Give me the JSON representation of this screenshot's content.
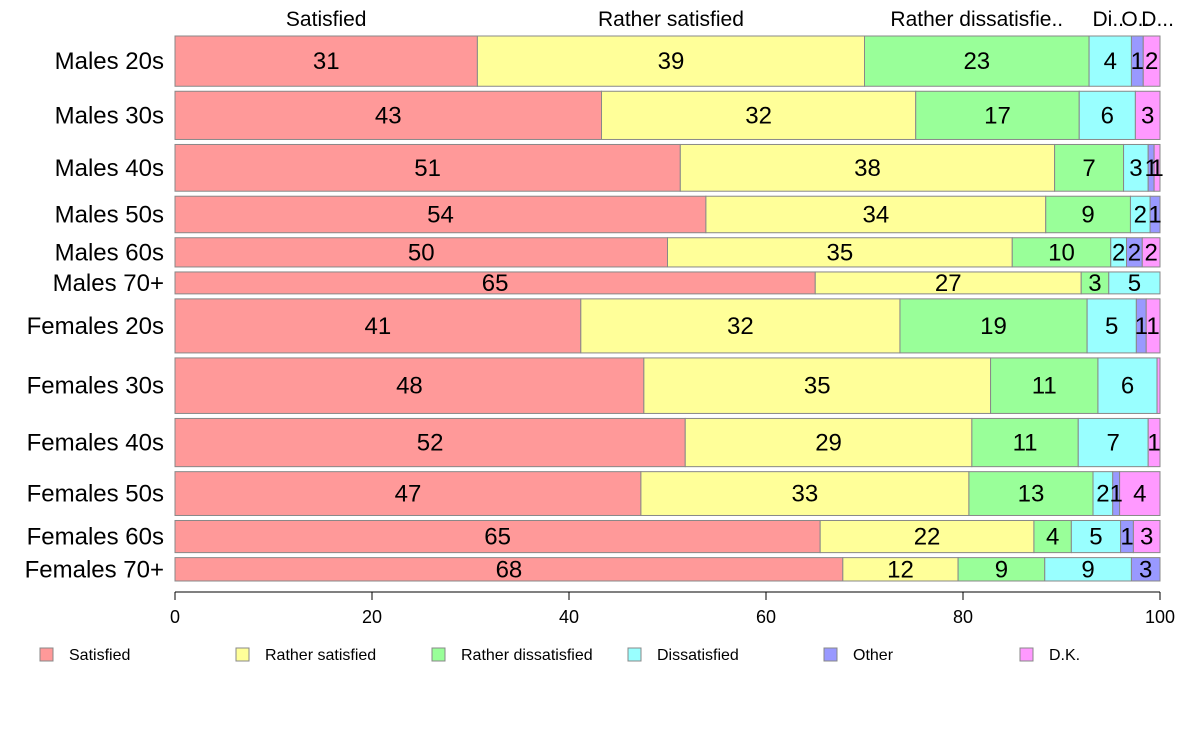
{
  "chart_data": {
    "type": "bar",
    "orientation": "horizontal",
    "stacked": true,
    "title": "",
    "xlabel": "",
    "ylabel": "",
    "xlim": [
      0,
      100
    ],
    "xticks": [
      0,
      20,
      40,
      60,
      80,
      100
    ],
    "grid": false,
    "legend_position": "bottom",
    "categories": [
      "Males 20s",
      "Males 30s",
      "Males 40s",
      "Males 50s",
      "Males 60s",
      "Males 70+",
      "Females 20s",
      "Females 30s",
      "Females 40s",
      "Females 50s",
      "Females 60s",
      "Females 70+"
    ],
    "row_weights": [
      1.72,
      1.65,
      1.6,
      1.25,
      1.0,
      0.75,
      1.85,
      1.9,
      1.65,
      1.5,
      1.1,
      0.8
    ],
    "top_labels": [
      "Satisfied",
      "Rather satisfied",
      "Rather dissatisfie..",
      "Di..",
      "O..",
      "D..."
    ],
    "series": [
      {
        "name": "Satisfied",
        "color": "#FF9999",
        "values": [
          30.7,
          43.3,
          51.3,
          53.9,
          50.0,
          65.0,
          41.2,
          47.6,
          51.8,
          47.3,
          65.5,
          67.8
        ],
        "labels": [
          "31",
          "43",
          "51",
          "54",
          "50",
          "65",
          "41",
          "48",
          "52",
          "47",
          "65",
          "68"
        ]
      },
      {
        "name": "Rather satisfied",
        "color": "#FFFF99",
        "values": [
          39.3,
          31.9,
          38.0,
          34.5,
          35.0,
          27.0,
          32.4,
          35.2,
          29.1,
          33.3,
          21.7,
          11.7
        ],
        "labels": [
          "39",
          "32",
          "38",
          "34",
          "35",
          "27",
          "32",
          "35",
          "29",
          "33",
          "22",
          "12"
        ]
      },
      {
        "name": "Rather dissatisfied",
        "color": "#99FF99",
        "values": [
          22.8,
          16.6,
          7.0,
          8.6,
          10.0,
          2.8,
          19.0,
          10.9,
          10.8,
          12.6,
          3.8,
          8.8
        ],
        "labels": [
          "23",
          "17",
          "7",
          "9",
          "10",
          "3",
          "19",
          "11",
          "11",
          "13",
          "4",
          "9"
        ]
      },
      {
        "name": "Dissatisfied",
        "color": "#99FFFF",
        "values": [
          4.3,
          5.7,
          2.5,
          2.0,
          1.6,
          5.2,
          5.0,
          6.0,
          7.1,
          2.0,
          5.0,
          8.8
        ],
        "labels": [
          "4",
          "6",
          "3",
          "2",
          "2",
          "5",
          "5",
          "6",
          "7",
          "2",
          "5",
          "9"
        ]
      },
      {
        "name": "Other",
        "color": "#9999FF",
        "values": [
          1.2,
          0,
          0.6,
          1.0,
          1.6,
          0,
          1.0,
          0,
          0,
          0.7,
          1.3,
          2.9
        ],
        "labels": [
          "1",
          "",
          "1",
          "1",
          "2",
          "",
          "1",
          "",
          "",
          "1",
          "1",
          "3"
        ]
      },
      {
        "name": "D.K.",
        "color": "#FF99FF",
        "values": [
          1.7,
          2.5,
          0.6,
          0,
          1.8,
          0,
          1.4,
          0.3,
          1.2,
          4.1,
          2.7,
          0
        ],
        "labels": [
          "2",
          "3",
          "1",
          "",
          "2",
          "",
          "1",
          "",
          "1",
          "4",
          "3",
          ""
        ]
      }
    ]
  }
}
